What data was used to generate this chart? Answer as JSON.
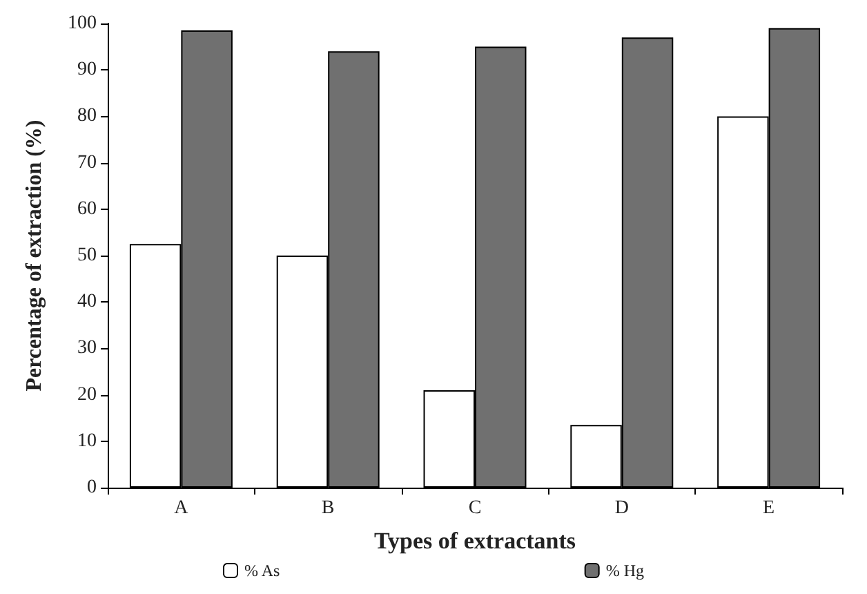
{
  "chart_data": {
    "type": "bar",
    "xlabel": "Types of extractants",
    "ylabel": "Percentage of extraction (%)",
    "categories": [
      "A",
      "B",
      "C",
      "D",
      "E"
    ],
    "series": [
      {
        "name": "% As",
        "color": "#ffffff",
        "values": [
          52.5,
          50,
          21,
          13.5,
          80
        ]
      },
      {
        "name": "% Hg",
        "color": "#707070",
        "values": [
          98.5,
          94,
          95,
          97,
          99
        ]
      }
    ],
    "ylim": [
      0,
      100
    ],
    "yticks": [
      0,
      10,
      20,
      30,
      40,
      50,
      60,
      70,
      80,
      90,
      100
    ],
    "grid": false,
    "legend": "bottom"
  }
}
